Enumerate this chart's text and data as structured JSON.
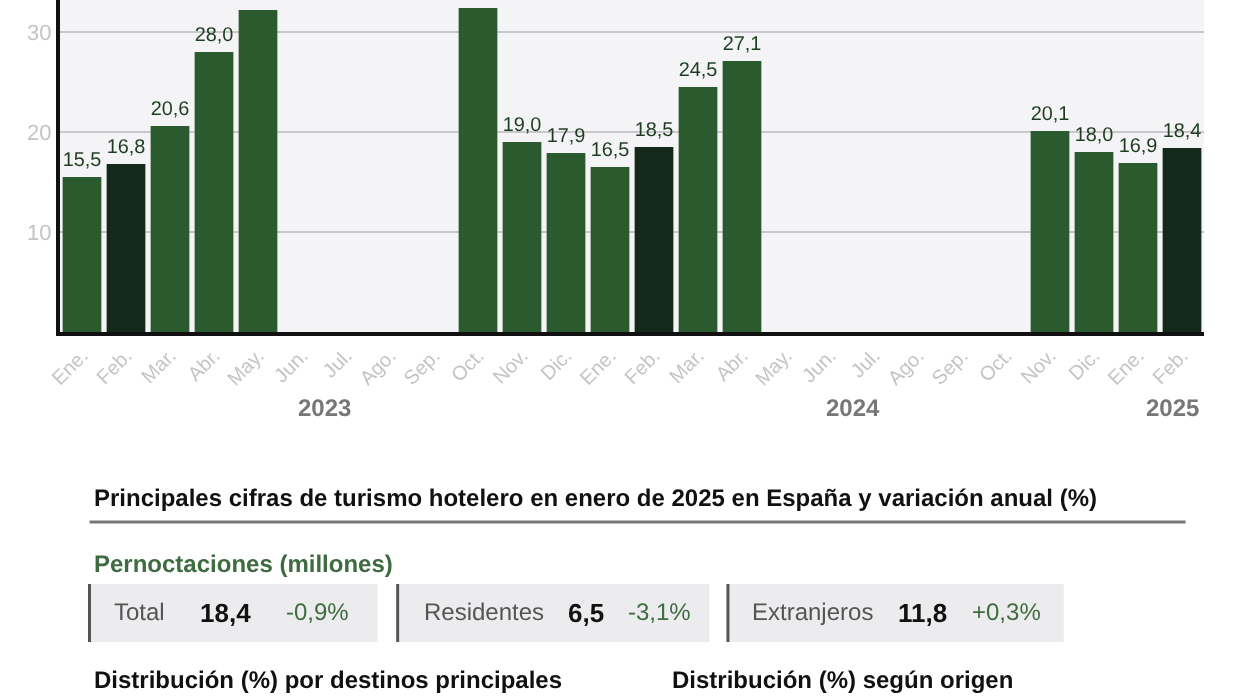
{
  "chart_data": {
    "type": "bar",
    "categories": [
      "Ene.",
      "Feb.",
      "Mar.",
      "Abr.",
      "May.",
      "Jun.",
      "Jul.",
      "Ago.",
      "Sep.",
      "Oct.",
      "Nov.",
      "Dic.",
      "Ene.",
      "Feb.",
      "Mar.",
      "Abr.",
      "May.",
      "Jun.",
      "Jul.",
      "Ago.",
      "Sep.",
      "Oct.",
      "Nov.",
      "Dic.",
      "Ene.",
      "Feb."
    ],
    "values": [
      15.5,
      16.8,
      20.6,
      28.0,
      32.2,
      null,
      null,
      null,
      null,
      32.4,
      19.0,
      17.9,
      16.5,
      18.5,
      24.5,
      27.1,
      null,
      null,
      null,
      null,
      null,
      null,
      20.1,
      18.0,
      16.9,
      18.4
    ],
    "value_labels": [
      "15,5",
      "16,8",
      "20,6",
      "28,0",
      null,
      null,
      null,
      null,
      null,
      null,
      "19,0",
      "17,9",
      "16,5",
      "18,5",
      "24,5",
      "27,1",
      null,
      null,
      null,
      null,
      null,
      null,
      "20,1",
      "18,0",
      "16,9",
      "18,4"
    ],
    "colors": [
      "#2a5a2e",
      "#15291a",
      "#2a5a2e",
      "#2a5a2e",
      "#2a5a2e",
      "#2a5a2e",
      "#2a5a2e",
      "#2a5a2e",
      "#2a5a2e",
      "#2a5a2e",
      "#2a5a2e",
      "#2a5a2e",
      "#2a5a2e",
      "#15291a",
      "#2a5a2e",
      "#2a5a2e",
      "#2a5a2e",
      "#2a5a2e",
      "#2a5a2e",
      "#2a5a2e",
      "#2a5a2e",
      "#2a5a2e",
      "#2a5a2e",
      "#2a5a2e",
      "#2a5a2e",
      "#15291a"
    ],
    "ylim": [
      0,
      33.2
    ],
    "yticks": [
      10,
      20,
      30
    ],
    "grid": "y",
    "annotations": [
      "2023",
      "2024",
      "2025",
      "Principales cifras de turismo hotelero en enero de 2025 en España y variación anual (%)",
      "Pernoctaciones (millones)",
      "Total",
      "18,4",
      "-0,9%",
      "Residentes",
      "6,5",
      "-3,1%",
      "Extranjeros",
      "11,8",
      "+0,3%",
      "Distribución (%) por destinos principales",
      "Distribución (%) según origen"
    ]
  }
}
